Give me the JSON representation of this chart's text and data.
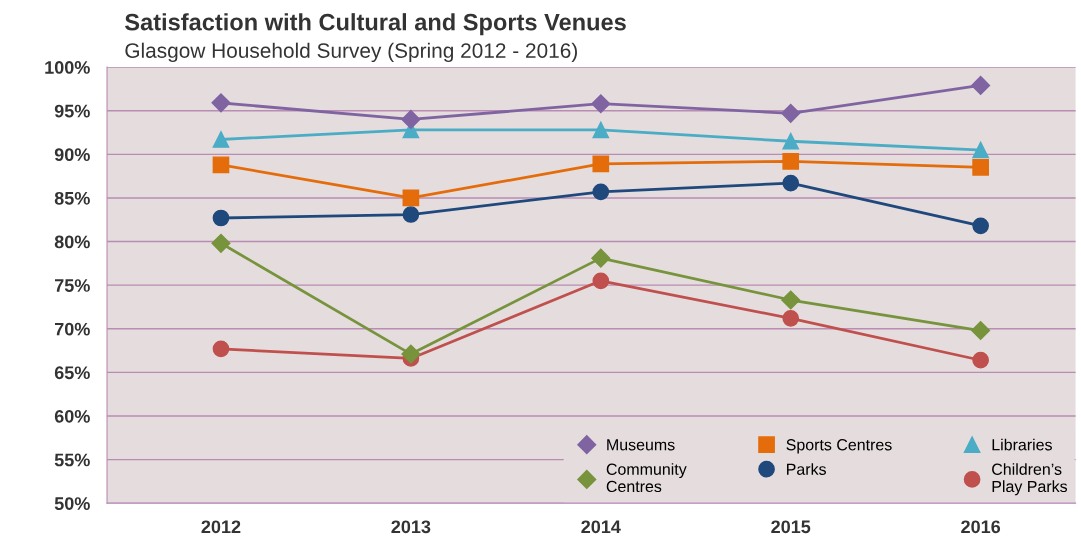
{
  "chart_data": {
    "type": "line",
    "title": "Satisfaction with Cultural and Sports Venues",
    "subtitle": "Glasgow Household Survey (Spring 2012 - 2016)",
    "categories": [
      "2012",
      "2013",
      "2014",
      "2015",
      "2016"
    ],
    "series": [
      {
        "name": "Museums",
        "color": "#8064a2",
        "marker": "diamond",
        "values": [
          95.9,
          94.0,
          95.8,
          94.7,
          97.9
        ]
      },
      {
        "name": "Sports Centres",
        "color": "#e46c0a",
        "marker": "square",
        "values": [
          88.8,
          85.0,
          88.9,
          89.2,
          88.5
        ]
      },
      {
        "name": "Libraries",
        "color": "#4bacc6",
        "marker": "triangle",
        "values": [
          91.7,
          92.8,
          92.8,
          91.5,
          90.5
        ]
      },
      {
        "name": "Community Centres",
        "color": "#77933c",
        "marker": "diamond",
        "values": [
          79.8,
          67.1,
          78.1,
          73.3,
          69.8
        ]
      },
      {
        "name": "Parks",
        "color": "#1f497d",
        "marker": "circle",
        "values": [
          82.7,
          83.1,
          85.7,
          86.7,
          81.8
        ]
      },
      {
        "name": "Children’s Play Parks",
        "color": "#c0504d",
        "marker": "circle",
        "values": [
          67.7,
          66.6,
          75.5,
          71.2,
          66.4
        ]
      }
    ],
    "ylim": [
      50,
      100
    ],
    "yticks": [
      {
        "value": 50,
        "label": "50%"
      },
      {
        "value": 55,
        "label": "55%"
      },
      {
        "value": 60,
        "label": "60%"
      },
      {
        "value": 65,
        "label": "65%"
      },
      {
        "value": 70,
        "label": "70%"
      },
      {
        "value": 75,
        "label": "75%"
      },
      {
        "value": 80,
        "label": "80%"
      },
      {
        "value": 85,
        "label": "85%"
      },
      {
        "value": 90,
        "label": "90%"
      },
      {
        "value": 95,
        "label": "95%"
      },
      {
        "value": 100,
        "label": "100%"
      }
    ],
    "grid": "y",
    "legend": "bottom right",
    "line_style": "solid"
  }
}
